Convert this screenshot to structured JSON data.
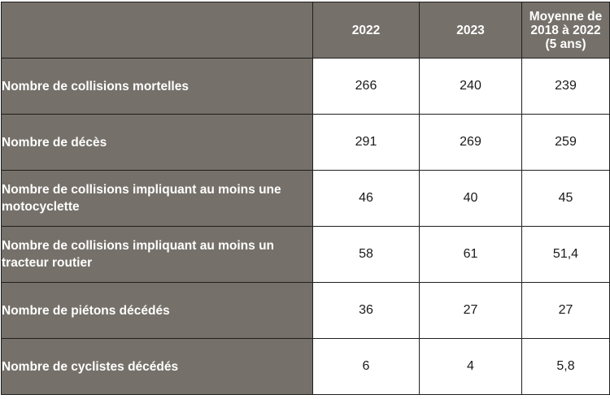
{
  "table": {
    "columns": {
      "label": "",
      "year_2022": "2022",
      "year_2023": "2023",
      "average_lines": [
        "Moyenne de",
        "2018 à 2022",
        "(5 ans)"
      ]
    },
    "rows": [
      {
        "label": "Nombre de collisions mortelles",
        "v2022": "266",
        "v2023": "240",
        "avg": "239"
      },
      {
        "label": "Nombre de décès",
        "v2022": "291",
        "v2023": "269",
        "avg": "259"
      },
      {
        "label": "Nombre de collisions impliquant au moins une motocyclette",
        "v2022": "46",
        "v2023": "40",
        "avg": "45"
      },
      {
        "label": "Nombre de collisions impliquant au moins un tracteur routier",
        "v2022": "58",
        "v2023": "61",
        "avg": "51,4"
      },
      {
        "label": "Nombre de piétons décédés",
        "v2022": "36",
        "v2023": "27",
        "avg": "27"
      },
      {
        "label": "Nombre de cyclistes décédés",
        "v2022": "6",
        "v2023": "4",
        "avg": "5,8"
      }
    ]
  },
  "colors": {
    "header_bg": "#757069",
    "header_text": "#ffffff",
    "cell_bg": "#ffffff",
    "border": "#1f1f1f"
  }
}
